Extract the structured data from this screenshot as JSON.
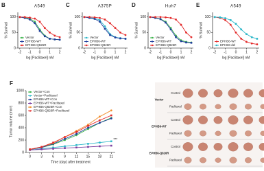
{
  "chart_data": [
    {
      "type": "line",
      "panel": "B",
      "title": "A549",
      "x_label": "log [Paclitaxel] nM",
      "y_label": "% Survival",
      "x": [
        -2,
        -1.5,
        -1,
        -0.5,
        0,
        0.5,
        1,
        1.5,
        2
      ],
      "xlim": [
        -2.2,
        2.2
      ],
      "xticks": [
        -2,
        -1,
        0,
        1,
        2
      ],
      "ylim": [
        0,
        115
      ],
      "yticks": [
        0,
        50,
        100
      ],
      "legend": "lower left",
      "series": [
        {
          "name": "Vector",
          "color": "#3cb44b",
          "values": [
            100,
            98,
            95,
            85,
            60,
            40,
            30,
            28,
            27
          ]
        },
        {
          "name": "EPHB6-WT",
          "color": "#1f3c9c",
          "values": [
            100,
            97,
            92,
            80,
            55,
            38,
            30,
            28,
            27
          ]
        },
        {
          "name": "EPHB6-Q826R",
          "color": "#e32b2b",
          "values": [
            100,
            100,
            98,
            95,
            85,
            65,
            50,
            40,
            35
          ]
        }
      ]
    },
    {
      "type": "line",
      "panel": "C",
      "title": "A375P",
      "x_label": "log [Paclitaxel] nM",
      "y_label": "% Survival",
      "x": [
        -2,
        -1.5,
        -1,
        -0.5,
        0,
        0.5,
        1,
        1.5,
        2
      ],
      "xlim": [
        -2.2,
        2.2
      ],
      "xticks": [
        -2,
        -1,
        0,
        1,
        2
      ],
      "ylim": [
        0,
        115
      ],
      "yticks": [
        0,
        50,
        100
      ],
      "legend": "lower left",
      "series": [
        {
          "name": "Vector",
          "color": "#2bb7c9",
          "values": [
            100,
            98,
            96,
            90,
            70,
            45,
            35,
            32,
            30
          ]
        },
        {
          "name": "EPHB6-WT",
          "color": "#1f3c9c",
          "values": [
            100,
            97,
            94,
            85,
            62,
            42,
            34,
            31,
            30
          ]
        },
        {
          "name": "EPHB6-Q826R",
          "color": "#e32b2b",
          "values": [
            100,
            100,
            99,
            97,
            92,
            80,
            65,
            50,
            42
          ]
        }
      ]
    },
    {
      "type": "line",
      "panel": "D",
      "title": "Huh7",
      "x_label": "log [Paclitaxel] nM",
      "y_label": "% Survival",
      "x": [
        -2,
        -1.5,
        -1,
        -0.5,
        0,
        0.5,
        1,
        1.5,
        2
      ],
      "xlim": [
        -2.2,
        2.2
      ],
      "xticks": [
        -2,
        -1,
        0,
        1,
        2
      ],
      "ylim": [
        0,
        115
      ],
      "yticks": [
        0,
        50,
        100
      ],
      "legend": "lower left",
      "series": [
        {
          "name": "Vector",
          "color": "#3cb44b",
          "values": [
            100,
            98,
            94,
            85,
            65,
            40,
            25,
            20,
            18
          ]
        },
        {
          "name": "EPHB6-WT",
          "color": "#1f3c9c",
          "values": [
            100,
            97,
            93,
            82,
            60,
            35,
            22,
            18,
            17
          ]
        },
        {
          "name": "EPHB6-Q826R",
          "color": "#e32b2b",
          "values": [
            100,
            100,
            100,
            99,
            97,
            92,
            75,
            50,
            35
          ]
        }
      ]
    },
    {
      "type": "line",
      "panel": "E",
      "title": "A549",
      "x_label": "log [Paclitaxel] nM",
      "y_label": "% Survival",
      "x": [
        -2,
        -1.5,
        -1,
        -0.5,
        0,
        0.5,
        1,
        1.5,
        2
      ],
      "xlim": [
        -2.2,
        2.2
      ],
      "xticks": [
        -2,
        -1,
        0,
        1,
        2
      ],
      "ylim": [
        0,
        115
      ],
      "yticks": [
        0,
        50,
        100
      ],
      "legend": "lower left",
      "series": [
        {
          "name": "EPHB6-WT",
          "color": "#e32b2b",
          "values": [
            100,
            97,
            90,
            75,
            50,
            30,
            20,
            15,
            12
          ]
        },
        {
          "name": "EPHB6-del",
          "color": "#2bb7c9",
          "values": [
            100,
            99,
            96,
            90,
            78,
            60,
            45,
            35,
            30
          ]
        }
      ]
    },
    {
      "type": "line",
      "panel": "F",
      "x_label": "Time (day) after treatment",
      "y_label": "Tumor volume (mm³)",
      "x": [
        0,
        3,
        6,
        9,
        12,
        15,
        18,
        21
      ],
      "xlim": [
        -1,
        22
      ],
      "xticks": [
        0,
        3,
        6,
        9,
        12,
        15,
        18,
        21
      ],
      "ylim": [
        0,
        1000
      ],
      "yticks": [
        0,
        200,
        400,
        600,
        800,
        1000
      ],
      "legend": "upper left",
      "annotation": "***",
      "series": [
        {
          "name": "Vector+Con",
          "color": "#3cb44b",
          "values": [
            50,
            80,
            130,
            200,
            280,
            380,
            480,
            560
          ]
        },
        {
          "name": "Vector+Paclitaxel",
          "color": "#2bb7c9",
          "values": [
            40,
            60,
            80,
            100,
            120,
            140,
            160,
            180
          ]
        },
        {
          "name": "EPHB6-WT+Con",
          "color": "#1f3c9c",
          "values": [
            50,
            80,
            140,
            220,
            300,
            400,
            480,
            550
          ]
        },
        {
          "name": "EPHB6-WT+Paclitaxel",
          "color": "#7b3fa0",
          "values": [
            40,
            50,
            60,
            70,
            80,
            90,
            100,
            110
          ]
        },
        {
          "name": "EPHB6-Q826R+Con",
          "color": "#f28e2b",
          "values": [
            50,
            90,
            150,
            250,
            350,
            450,
            580,
            680
          ]
        },
        {
          "name": "EPHB6-Q826R+Paclitaxel",
          "color": "#e32b2b",
          "values": [
            50,
            90,
            160,
            250,
            330,
            430,
            520,
            600
          ]
        }
      ]
    }
  ],
  "photo": {
    "groups": [
      {
        "label": "Vector",
        "rows": [
          "Control",
          "Paclitaxel"
        ]
      },
      {
        "label": "EPHB6-WT",
        "rows": [
          "Control",
          "Paclitaxel"
        ]
      },
      {
        "label": "EPHB6-Q826R",
        "rows": [
          "Control",
          "Paclitaxel"
        ]
      }
    ]
  }
}
